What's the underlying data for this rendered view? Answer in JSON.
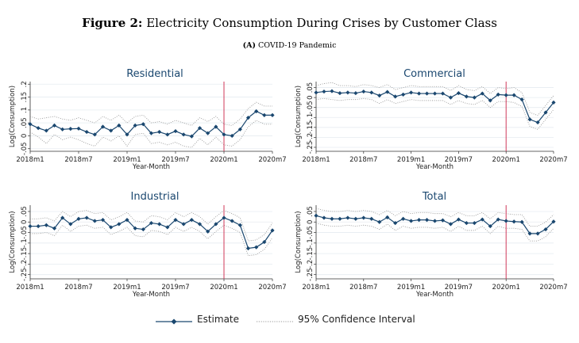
{
  "figure": {
    "label": "Figure 2:",
    "title": "Electricity Consumption During Crises by Customer Class",
    "sub_label": "(A)",
    "subtitle": "COVID-19 Pandemic"
  },
  "legend": {
    "estimate": "Estimate",
    "ci": "95% Confidence Interval"
  },
  "colors": {
    "line": "#1a476f",
    "ci": "#9a9a9a",
    "vline": "#d0385a",
    "title": "#1a476f"
  },
  "chart_data": [
    {
      "type": "line",
      "title": "Residential",
      "xlabel": "Year-Month",
      "ylabel": "Log(Consumption)",
      "x_ticks": [
        {
          "x": 0,
          "label": "2018m1"
        },
        {
          "x": 6,
          "label": "2018m7"
        },
        {
          "x": 12,
          "label": "2019m1"
        },
        {
          "x": 18,
          "label": "2019m7"
        },
        {
          "x": 24,
          "label": "2020m1"
        },
        {
          "x": 30,
          "label": "2020m7"
        }
      ],
      "y_ticks": [
        {
          "v": -0.05,
          "label": "-.05"
        },
        {
          "v": 0,
          "label": "0"
        },
        {
          "v": 0.05,
          "label": ".05"
        },
        {
          "v": 0.1,
          "label": ".1"
        },
        {
          "v": 0.15,
          "label": ".15"
        },
        {
          "v": 0.2,
          "label": ".2"
        }
      ],
      "ylim": [
        -0.06,
        0.21
      ],
      "xlim": [
        0,
        30
      ],
      "vline_x": 24,
      "grid": true,
      "x": [
        0,
        1,
        2,
        3,
        4,
        5,
        6,
        7,
        8,
        9,
        10,
        11,
        12,
        13,
        14,
        15,
        16,
        17,
        18,
        19,
        20,
        21,
        22,
        23,
        24,
        25,
        26,
        27,
        28,
        29,
        30
      ],
      "estimate": [
        0.045,
        0.03,
        0.02,
        0.04,
        0.025,
        0.027,
        0.028,
        0.015,
        0.005,
        0.035,
        0.02,
        0.04,
        0.005,
        0.04,
        0.045,
        0.01,
        0.015,
        0.005,
        0.018,
        0.005,
        -0.002,
        0.03,
        0.01,
        0.035,
        0.005,
        0.0,
        0.025,
        0.07,
        0.095,
        0.08,
        0.08
      ],
      "ci_upper": [
        0.075,
        0.065,
        0.07,
        0.075,
        0.065,
        0.06,
        0.07,
        0.06,
        0.05,
        0.075,
        0.06,
        0.08,
        0.05,
        0.075,
        0.08,
        0.05,
        0.055,
        0.045,
        0.06,
        0.05,
        0.04,
        0.07,
        0.055,
        0.075,
        0.045,
        0.04,
        0.065,
        0.105,
        0.13,
        0.115,
        0.115
      ],
      "ci_lower": [
        0.015,
        -0.005,
        -0.03,
        0.005,
        -0.015,
        -0.005,
        -0.015,
        -0.03,
        -0.04,
        -0.005,
        -0.02,
        0.0,
        -0.04,
        0.005,
        0.01,
        -0.03,
        -0.025,
        -0.035,
        -0.025,
        -0.04,
        -0.045,
        -0.01,
        -0.035,
        -0.005,
        -0.035,
        -0.04,
        -0.015,
        0.035,
        0.06,
        0.045,
        0.045
      ]
    },
    {
      "type": "line",
      "title": "Commercial",
      "xlabel": "Year-Month",
      "ylabel": "Log(Consumption)",
      "x_ticks": [
        {
          "x": 0,
          "label": "2018m1"
        },
        {
          "x": 6,
          "label": "2018m7"
        },
        {
          "x": 12,
          "label": "2019m1"
        },
        {
          "x": 18,
          "label": "2019m7"
        },
        {
          "x": 24,
          "label": "2020m1"
        },
        {
          "x": 30,
          "label": "2020m7"
        }
      ],
      "y_ticks": [
        {
          "v": -0.25,
          "label": "-.25"
        },
        {
          "v": -0.2,
          "label": "-.2"
        },
        {
          "v": -0.15,
          "label": "-.15"
        },
        {
          "v": -0.1,
          "label": "-.1"
        },
        {
          "v": -0.05,
          "label": "-.05"
        },
        {
          "v": 0,
          "label": "0"
        },
        {
          "v": 0.05,
          "label": ".05"
        }
      ],
      "ylim": [
        -0.27,
        0.08
      ],
      "xlim": [
        0,
        30
      ],
      "vline_x": 24,
      "grid": true,
      "x": [
        0,
        1,
        2,
        3,
        4,
        5,
        6,
        7,
        8,
        9,
        10,
        11,
        12,
        13,
        14,
        15,
        16,
        17,
        18,
        19,
        20,
        21,
        22,
        23,
        24,
        25,
        26,
        27,
        28,
        29,
        30
      ],
      "estimate": [
        0.025,
        0.03,
        0.032,
        0.022,
        0.025,
        0.022,
        0.03,
        0.025,
        0.01,
        0.028,
        0.005,
        0.015,
        0.025,
        0.02,
        0.02,
        0.02,
        0.02,
        0.0,
        0.022,
        0.005,
        0.0,
        0.02,
        -0.015,
        0.015,
        0.012,
        0.012,
        -0.01,
        -0.11,
        -0.125,
        -0.075,
        -0.025
      ],
      "ci_upper": [
        0.06,
        0.07,
        0.075,
        0.06,
        0.06,
        0.055,
        0.065,
        0.06,
        0.05,
        0.065,
        0.04,
        0.05,
        0.06,
        0.055,
        0.055,
        0.055,
        0.055,
        0.035,
        0.06,
        0.04,
        0.035,
        0.055,
        0.02,
        0.05,
        0.045,
        0.05,
        0.025,
        -0.075,
        -0.09,
        -0.04,
        0.01
      ],
      "ci_lower": [
        -0.01,
        -0.005,
        -0.01,
        -0.015,
        -0.01,
        -0.01,
        -0.005,
        -0.01,
        -0.03,
        -0.01,
        -0.03,
        -0.02,
        -0.01,
        -0.015,
        -0.015,
        -0.015,
        -0.015,
        -0.035,
        -0.015,
        -0.03,
        -0.035,
        -0.015,
        -0.05,
        -0.02,
        -0.02,
        -0.025,
        -0.045,
        -0.145,
        -0.16,
        -0.11,
        -0.06
      ]
    },
    {
      "type": "line",
      "title": "Industrial",
      "xlabel": "Year-Month",
      "ylabel": "Log(Consumption)",
      "x_ticks": [
        {
          "x": 0,
          "label": "2018m1"
        },
        {
          "x": 6,
          "label": "2018m7"
        },
        {
          "x": 12,
          "label": "2019m1"
        },
        {
          "x": 18,
          "label": "2019m7"
        },
        {
          "x": 24,
          "label": "2020m1"
        },
        {
          "x": 30,
          "label": "2020m7"
        }
      ],
      "y_ticks": [
        {
          "v": -0.25,
          "label": "-.25"
        },
        {
          "v": -0.2,
          "label": "-.2"
        },
        {
          "v": -0.15,
          "label": "-.15"
        },
        {
          "v": -0.1,
          "label": "-.1"
        },
        {
          "v": -0.05,
          "label": "-.05"
        },
        {
          "v": 0,
          "label": "0"
        },
        {
          "v": 0.05,
          "label": ".05"
        }
      ],
      "ylim": [
        -0.27,
        0.08
      ],
      "xlim": [
        0,
        30
      ],
      "vline_x": 24,
      "grid": true,
      "x": [
        0,
        1,
        2,
        3,
        4,
        5,
        6,
        7,
        8,
        9,
        10,
        11,
        12,
        13,
        14,
        15,
        16,
        17,
        18,
        19,
        20,
        21,
        22,
        23,
        24,
        25,
        26,
        27,
        28,
        29,
        30
      ],
      "estimate": [
        -0.02,
        -0.02,
        -0.015,
        -0.03,
        0.02,
        -0.01,
        0.015,
        0.02,
        0.005,
        0.01,
        -0.025,
        -0.01,
        0.01,
        -0.03,
        -0.035,
        -0.005,
        -0.01,
        -0.025,
        0.01,
        -0.01,
        0.01,
        -0.01,
        -0.045,
        -0.01,
        0.02,
        0.005,
        -0.015,
        -0.125,
        -0.12,
        -0.095,
        -0.04
      ],
      "ci_upper": [
        0.015,
        0.015,
        0.02,
        0.005,
        0.05,
        0.025,
        0.05,
        0.055,
        0.04,
        0.045,
        0.01,
        0.025,
        0.045,
        0.005,
        0.0,
        0.03,
        0.025,
        0.01,
        0.045,
        0.025,
        0.045,
        0.025,
        -0.01,
        0.025,
        0.055,
        0.04,
        0.02,
        -0.09,
        -0.085,
        -0.06,
        -0.005
      ],
      "ci_lower": [
        -0.055,
        -0.055,
        -0.05,
        -0.065,
        -0.015,
        -0.045,
        -0.02,
        -0.015,
        -0.03,
        -0.025,
        -0.06,
        -0.045,
        -0.025,
        -0.065,
        -0.07,
        -0.04,
        -0.045,
        -0.06,
        -0.025,
        -0.045,
        -0.025,
        -0.045,
        -0.08,
        -0.045,
        -0.015,
        -0.03,
        -0.05,
        -0.16,
        -0.155,
        -0.13,
        -0.075
      ]
    },
    {
      "type": "line",
      "title": "Total",
      "xlabel": "Year-Month",
      "ylabel": "Log(Consumption)",
      "x_ticks": [
        {
          "x": 0,
          "label": "2018m1"
        },
        {
          "x": 6,
          "label": "2018m7"
        },
        {
          "x": 12,
          "label": "2019m1"
        },
        {
          "x": 18,
          "label": "2019m7"
        },
        {
          "x": 24,
          "label": "2020m1"
        },
        {
          "x": 30,
          "label": "2020m7"
        }
      ],
      "y_ticks": [
        {
          "v": -0.25,
          "label": "-.25"
        },
        {
          "v": -0.2,
          "label": "-.2"
        },
        {
          "v": -0.15,
          "label": "-.15"
        },
        {
          "v": -0.1,
          "label": "-.1"
        },
        {
          "v": -0.05,
          "label": "-.05"
        },
        {
          "v": 0,
          "label": "0"
        },
        {
          "v": 0.05,
          "label": ".05"
        }
      ],
      "ylim": [
        -0.27,
        0.08
      ],
      "xlim": [
        0,
        30
      ],
      "vline_x": 24,
      "grid": true,
      "x": [
        0,
        1,
        2,
        3,
        4,
        5,
        6,
        7,
        8,
        9,
        10,
        11,
        12,
        13,
        14,
        15,
        16,
        17,
        18,
        19,
        20,
        21,
        22,
        23,
        24,
        25,
        26,
        27,
        28,
        29,
        30
      ],
      "estimate": [
        0.03,
        0.02,
        0.015,
        0.015,
        0.02,
        0.015,
        0.02,
        0.015,
        0.0,
        0.022,
        -0.005,
        0.015,
        0.005,
        0.01,
        0.01,
        0.005,
        0.008,
        -0.01,
        0.012,
        -0.005,
        -0.005,
        0.012,
        -0.02,
        0.012,
        0.005,
        0.002,
        0.0,
        -0.055,
        -0.055,
        -0.035,
        0.002
      ],
      "ci_upper": [
        0.065,
        0.055,
        0.05,
        0.05,
        0.055,
        0.05,
        0.055,
        0.05,
        0.035,
        0.055,
        0.03,
        0.05,
        0.04,
        0.045,
        0.045,
        0.04,
        0.04,
        0.025,
        0.045,
        0.03,
        0.03,
        0.045,
        0.015,
        0.045,
        0.04,
        0.035,
        0.035,
        -0.02,
        -0.02,
        0.0,
        0.035
      ],
      "ci_lower": [
        -0.005,
        -0.015,
        -0.02,
        -0.02,
        -0.015,
        -0.02,
        -0.015,
        -0.02,
        -0.035,
        -0.01,
        -0.04,
        -0.02,
        -0.03,
        -0.025,
        -0.025,
        -0.03,
        -0.025,
        -0.045,
        -0.02,
        -0.04,
        -0.04,
        -0.02,
        -0.055,
        -0.02,
        -0.03,
        -0.03,
        -0.035,
        -0.09,
        -0.09,
        -0.07,
        -0.03
      ]
    }
  ]
}
